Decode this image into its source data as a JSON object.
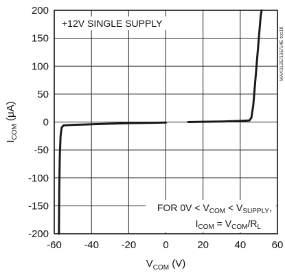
{
  "chart_data": {
    "type": "line",
    "xlim": [
      -60,
      60
    ],
    "ylim": [
      -200,
      200
    ],
    "x_ticks": [
      -60,
      -40,
      -20,
      0,
      20,
      40,
      60
    ],
    "y_ticks": [
      200,
      150,
      100,
      50,
      0,
      -50,
      -100,
      -150,
      -200
    ],
    "x_tick_labels": [
      "-60",
      "-40",
      "-20",
      "0",
      "20",
      "40",
      "60"
    ],
    "y_tick_labels": [
      "200",
      "150",
      "100",
      "50",
      "0",
      "-50",
      "-100",
      "-150",
      "-200"
    ],
    "xlabel": {
      "main": "V",
      "sub": "COM",
      "unit": " (V)"
    },
    "ylabel": {
      "main": "I",
      "sub": "COM",
      "unit": " (μA)"
    },
    "grid": true,
    "annotation_top": "+12V SINGLE SUPPLY",
    "annotation_bottom": {
      "line1": {
        "pre": "FOR 0V < V",
        "sub1": "COM",
        "mid": " < V",
        "sub2": "SUPPLY",
        "post": ","
      },
      "line2": {
        "pre": "I",
        "sub1": "COM",
        "mid": " = V",
        "sub2": "COM",
        "mid2": "/R",
        "sub3": "L"
      }
    },
    "side_label": "MAX312E/13E/14E toc16",
    "series": [
      {
        "segments": [
          [
            [
              -57.5,
              -200
            ],
            [
              -57.3,
              -120
            ],
            [
              -57.0,
              -60
            ],
            [
              -56.6,
              -25
            ],
            [
              -56.0,
              -10
            ],
            [
              -55.0,
              -6
            ],
            [
              -50,
              -5
            ],
            [
              -40,
              -4
            ],
            [
              -30,
              -3
            ],
            [
              -20,
              -2
            ],
            [
              -10,
              -1.5
            ],
            [
              0,
              -1
            ]
          ],
          [
            [
              12,
              0
            ],
            [
              20,
              0.5
            ],
            [
              30,
              1
            ],
            [
              40,
              2
            ],
            [
              45,
              3
            ],
            [
              46,
              8
            ],
            [
              47,
              30
            ],
            [
              48,
              70
            ],
            [
              49,
              110
            ],
            [
              50,
              150
            ],
            [
              51,
              190
            ],
            [
              51.5,
              200
            ]
          ]
        ]
      }
    ]
  }
}
